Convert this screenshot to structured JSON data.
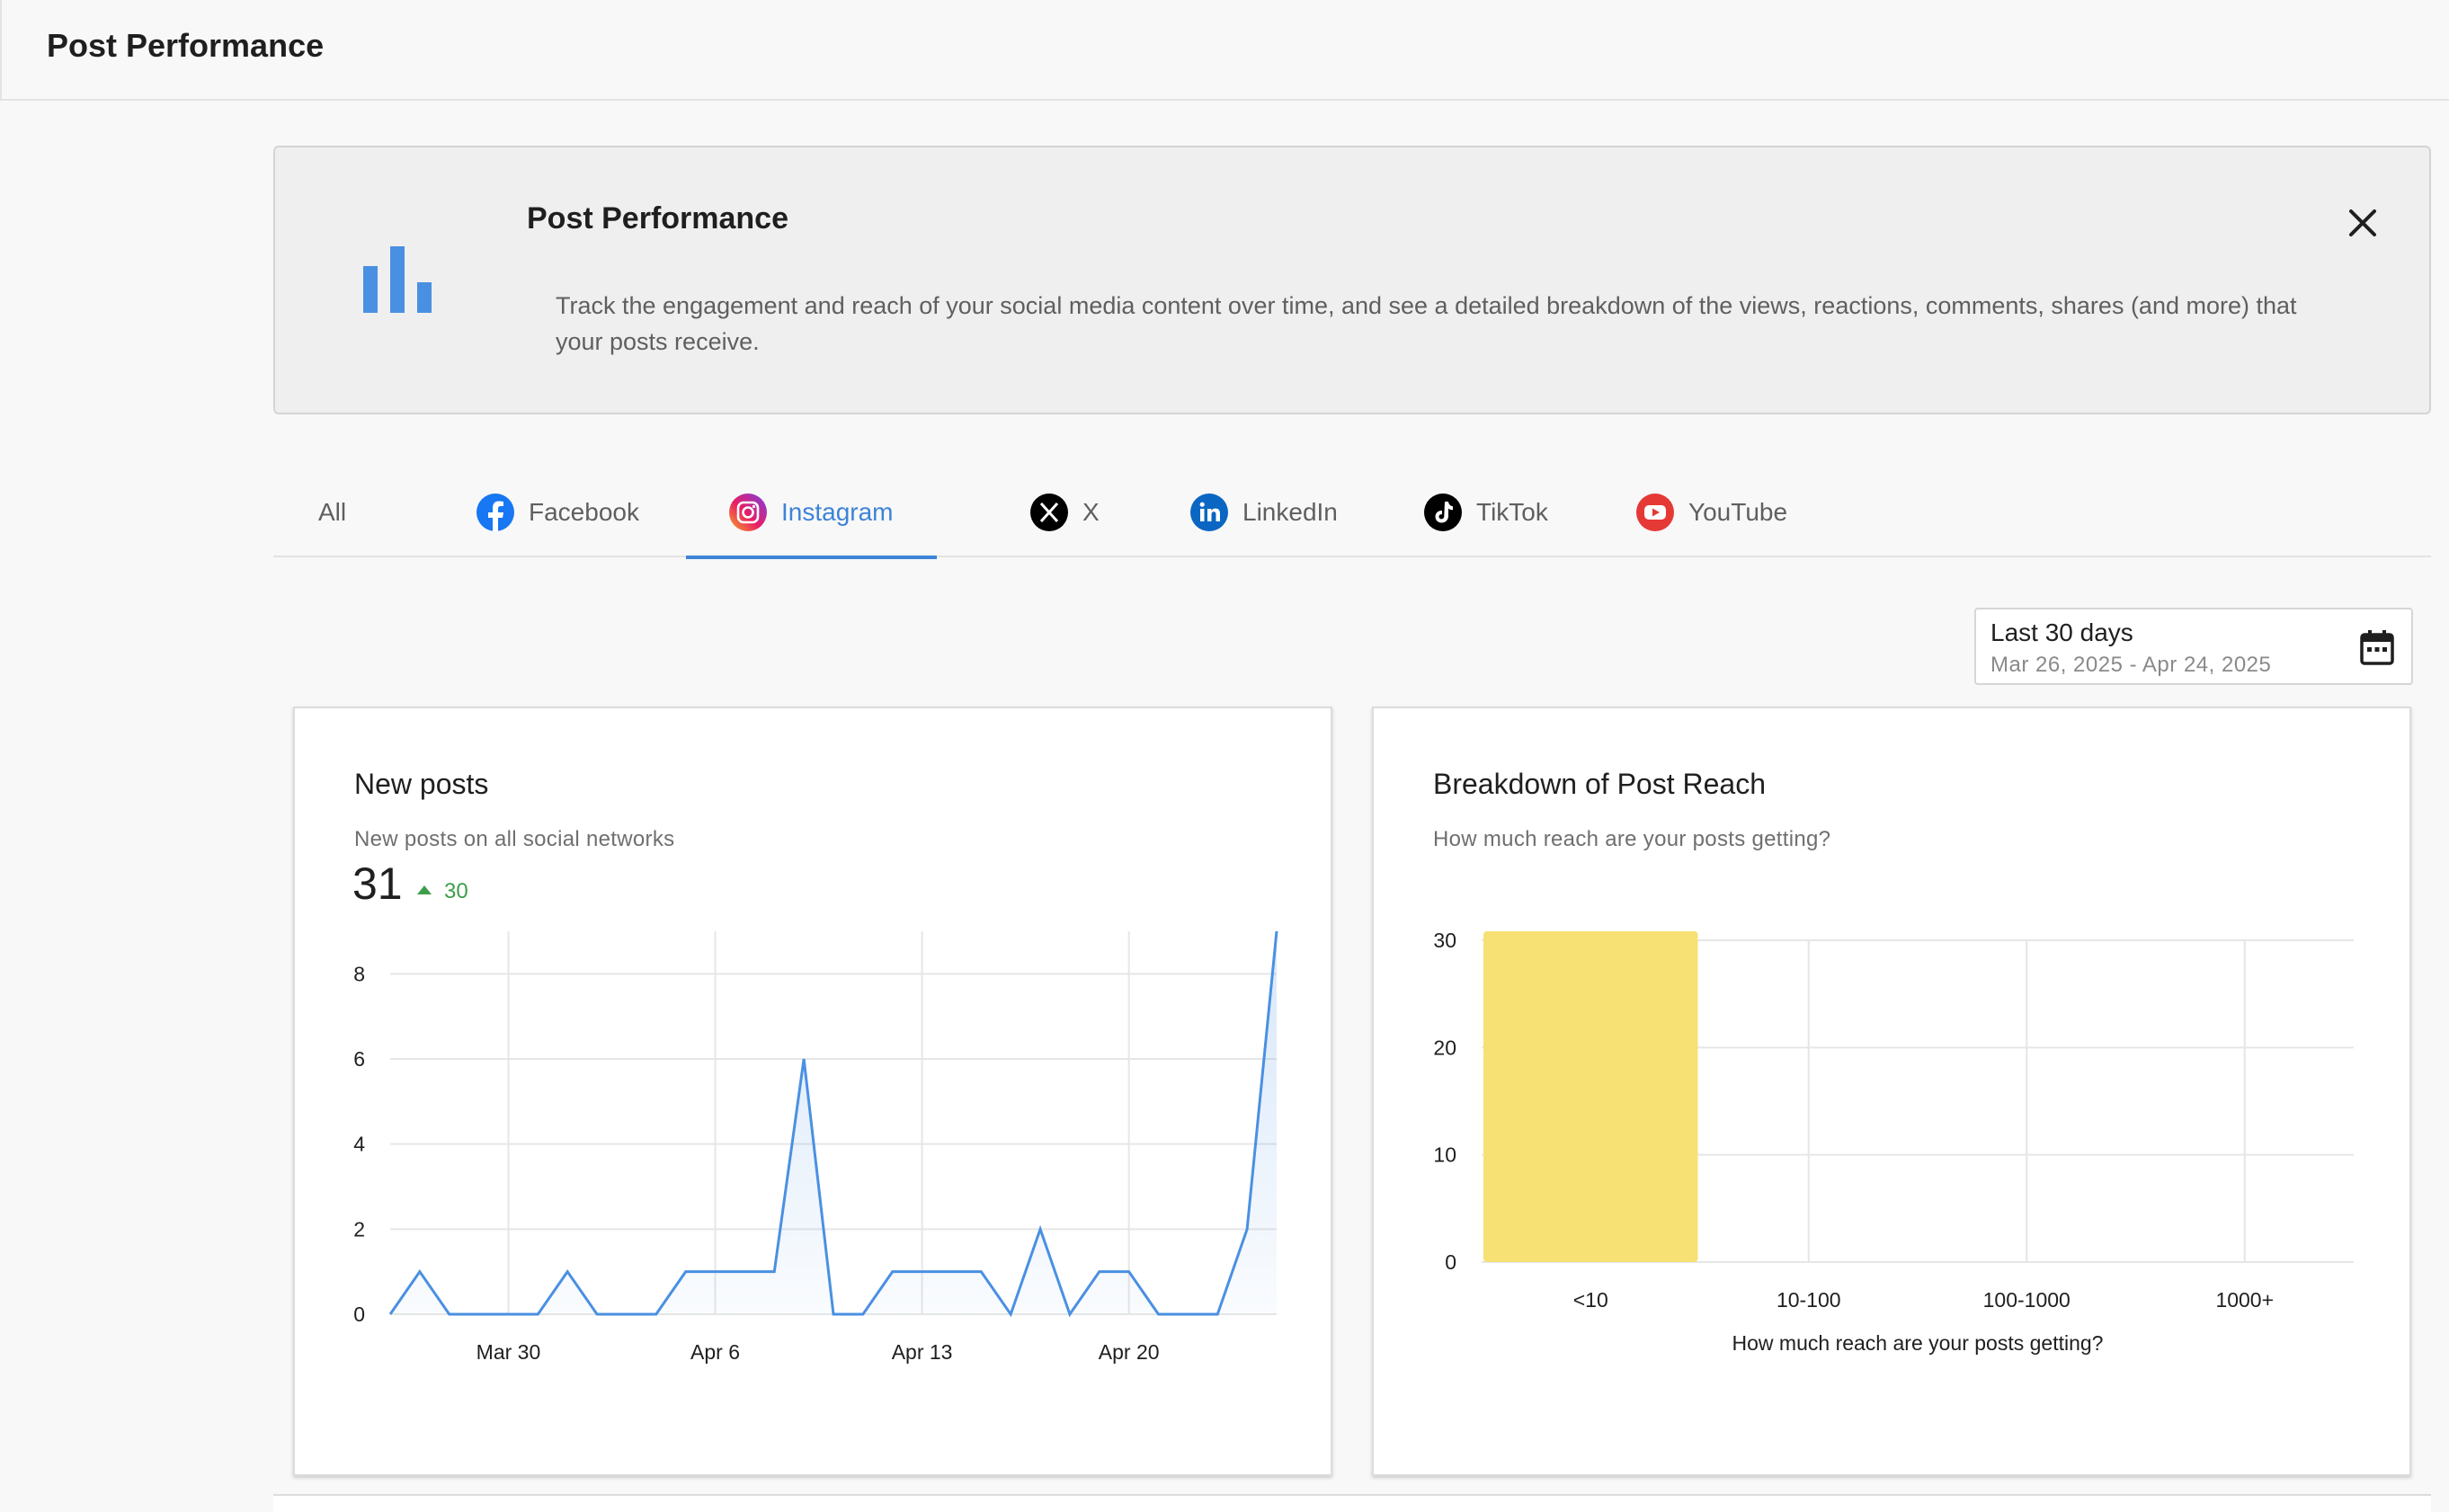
{
  "header": {
    "title": "Post Performance"
  },
  "banner": {
    "icon": "bar-chart-icon",
    "title": "Post Performance",
    "description": "Track the engagement and reach of your social media content over time, and see a detailed breakdown of the views, reactions, comments, shares (and more) that your posts receive.",
    "close_icon": "close-icon"
  },
  "tabs": [
    {
      "label": "All",
      "icon": ""
    },
    {
      "label": "Facebook",
      "icon": "facebook-icon"
    },
    {
      "label": "Instagram",
      "icon": "instagram-icon",
      "active": true
    },
    {
      "label": "X",
      "icon": "x-icon"
    },
    {
      "label": "LinkedIn",
      "icon": "linkedin-icon"
    },
    {
      "label": "TikTok",
      "icon": "tiktok-icon"
    },
    {
      "label": "YouTube",
      "icon": "youtube-icon"
    }
  ],
  "date_picker": {
    "label": "Last 30 days",
    "range": "Mar 26, 2025 - Apr 24, 2025",
    "icon": "calendar-icon"
  },
  "new_posts": {
    "title": "New posts",
    "subtitle": "New posts on all social networks",
    "total": "31",
    "delta": "30"
  },
  "reach": {
    "title": "Breakdown of Post Reach",
    "subtitle": "How much reach are your posts getting?"
  },
  "colors": {
    "accent": "#3d83d8",
    "line": "#4a90e2",
    "bar": "#f7e174",
    "positive": "#3e9d4a"
  },
  "chart_data": [
    {
      "type": "line",
      "title": "New posts",
      "x": [
        "Mar 26",
        "Mar 27",
        "Mar 28",
        "Mar 29",
        "Mar 30",
        "Mar 31",
        "Apr 1",
        "Apr 2",
        "Apr 3",
        "Apr 4",
        "Apr 5",
        "Apr 6",
        "Apr 7",
        "Apr 8",
        "Apr 9",
        "Apr 10",
        "Apr 11",
        "Apr 12",
        "Apr 13",
        "Apr 14",
        "Apr 15",
        "Apr 16",
        "Apr 17",
        "Apr 18",
        "Apr 19",
        "Apr 20",
        "Apr 21",
        "Apr 22",
        "Apr 23",
        "Apr 24",
        "Apr 25"
      ],
      "values": [
        0,
        1,
        0,
        0,
        0,
        0,
        1,
        0,
        0,
        0,
        1,
        1,
        1,
        1,
        6,
        0,
        0,
        1,
        1,
        1,
        1,
        0,
        2,
        0,
        1,
        1,
        0,
        0,
        0,
        2,
        9
      ],
      "x_ticks": [
        "Mar 30",
        "Apr 6",
        "Apr 13",
        "Apr 20"
      ],
      "y_ticks": [
        0,
        2,
        4,
        6,
        8
      ],
      "ylim": [
        0,
        9
      ],
      "xlabel": "",
      "ylabel": ""
    },
    {
      "type": "bar",
      "title": "Breakdown of Post Reach",
      "categories": [
        "<10",
        "10-100",
        "100-1000",
        "1000+"
      ],
      "values": [
        31,
        0,
        0,
        0
      ],
      "y_ticks": [
        0,
        10,
        20,
        30
      ],
      "ylim": [
        0,
        30
      ],
      "xlabel": "How much reach are your posts getting?",
      "ylabel": ""
    }
  ]
}
